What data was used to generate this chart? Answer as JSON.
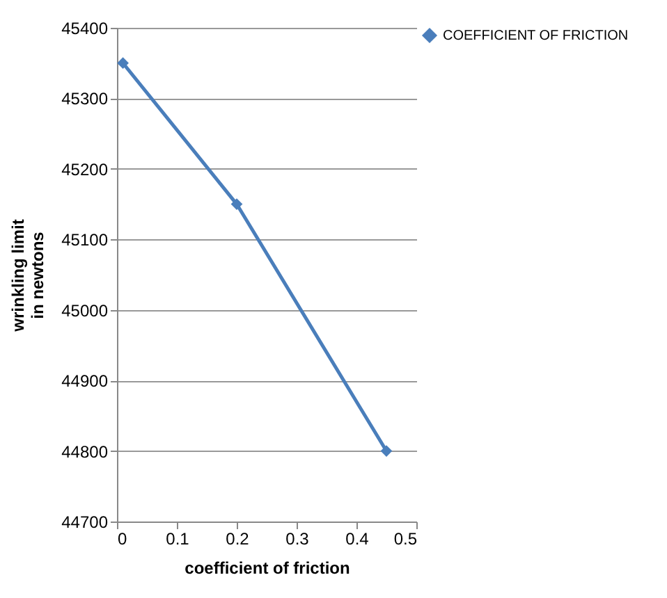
{
  "chart_data": {
    "type": "line",
    "xlabel": "coefficient of friction",
    "ylabel": "wrinkling limit in newtons",
    "x": [
      0.01,
      0.2,
      0.45
    ],
    "series": [
      {
        "name": "COEFFICIENT OF FRICTION",
        "color": "#4a7ebb",
        "values": [
          45350,
          45150,
          44800
        ]
      }
    ],
    "xlim": [
      0,
      0.5
    ],
    "xticks": [
      0,
      0.1,
      0.2,
      0.3,
      0.4,
      0.5
    ],
    "ylim": [
      44700,
      45400
    ],
    "yticks": [
      44700,
      44800,
      44900,
      45000,
      45100,
      45200,
      45300,
      45400
    ],
    "grid": "y",
    "legend": "right",
    "marker": "diamond",
    "line_style": "solid"
  }
}
